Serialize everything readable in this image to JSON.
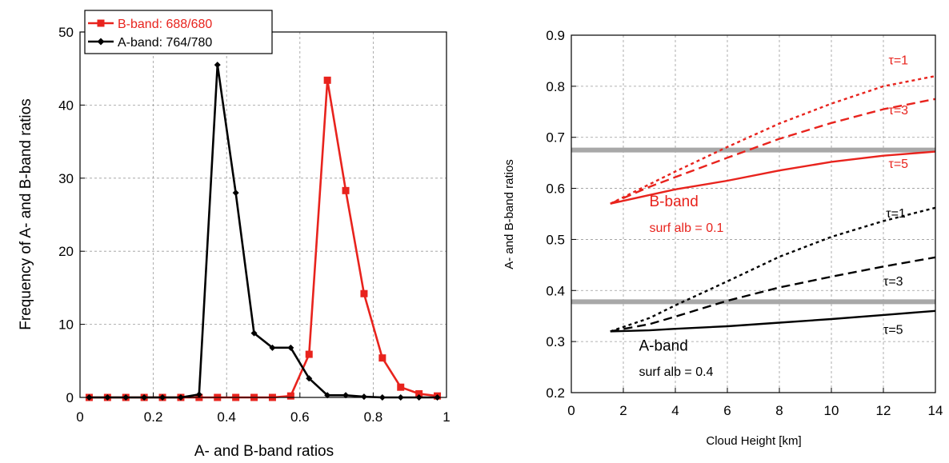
{
  "chart_data": [
    {
      "type": "line",
      "xlabel": "A- and B-band ratios",
      "ylabel": "Frequency of A- and B-band ratios",
      "xlim": [
        0,
        1
      ],
      "ylim": [
        0,
        50
      ],
      "x_ticks": [
        "0",
        "0.2",
        "0.4",
        "0.6",
        "0.8",
        "1"
      ],
      "y_ticks": [
        "0",
        "10",
        "20",
        "30",
        "40",
        "50"
      ],
      "grid": true,
      "legend_position": "top-left",
      "series": [
        {
          "name": "B-band: 688/680",
          "color": "#e8231d",
          "marker": "square",
          "points": [
            [
              0.025,
              0
            ],
            [
              0.075,
              0
            ],
            [
              0.125,
              0
            ],
            [
              0.175,
              0
            ],
            [
              0.225,
              0
            ],
            [
              0.275,
              0
            ],
            [
              0.325,
              0
            ],
            [
              0.375,
              0
            ],
            [
              0.425,
              0
            ],
            [
              0.475,
              0
            ],
            [
              0.525,
              0
            ],
            [
              0.575,
              0.2
            ],
            [
              0.625,
              5.9
            ],
            [
              0.675,
              43.4
            ],
            [
              0.725,
              28.3
            ],
            [
              0.775,
              14.2
            ],
            [
              0.825,
              5.4
            ],
            [
              0.875,
              1.4
            ],
            [
              0.925,
              0.5
            ],
            [
              0.975,
              0.2
            ]
          ]
        },
        {
          "name": "A-band: 764/780",
          "color": "#000000",
          "marker": "diamond",
          "points": [
            [
              0.025,
              0
            ],
            [
              0.075,
              0
            ],
            [
              0.125,
              0
            ],
            [
              0.175,
              0
            ],
            [
              0.225,
              0
            ],
            [
              0.275,
              0
            ],
            [
              0.325,
              0.4
            ],
            [
              0.375,
              45.5
            ],
            [
              0.425,
              28.0
            ],
            [
              0.475,
              8.8
            ],
            [
              0.525,
              6.8
            ],
            [
              0.575,
              6.8
            ],
            [
              0.625,
              2.6
            ],
            [
              0.675,
              0.3
            ],
            [
              0.725,
              0.3
            ],
            [
              0.775,
              0.1
            ],
            [
              0.825,
              0
            ],
            [
              0.875,
              0
            ],
            [
              0.925,
              0
            ],
            [
              0.975,
              0
            ]
          ]
        }
      ]
    },
    {
      "type": "line",
      "xlabel": "Cloud Height [km]",
      "ylabel": "A- and B-band ratios",
      "xlim": [
        0,
        14
      ],
      "ylim": [
        0.2,
        0.9
      ],
      "x_ticks": [
        "0",
        "2",
        "4",
        "6",
        "8",
        "10",
        "12",
        "14"
      ],
      "y_ticks": [
        "0.2",
        "0.3",
        "0.4",
        "0.5",
        "0.6",
        "0.7",
        "0.8",
        "0.9"
      ],
      "grid": true,
      "reference_lines": [
        {
          "y": 0.675,
          "color": "#a8a8a8"
        },
        {
          "y": 0.378,
          "color": "#a8a8a8"
        }
      ],
      "series": [
        {
          "color": "#e8231d",
          "dash": "dotted",
          "points": [
            [
              1.5,
              0.57
            ],
            [
              3,
              0.608
            ],
            [
              4,
              0.633
            ],
            [
              6,
              0.681
            ],
            [
              8,
              0.727
            ],
            [
              10,
              0.766
            ],
            [
              12,
              0.8
            ],
            [
              14,
              0.82
            ]
          ]
        },
        {
          "color": "#e8231d",
          "dash": "dashed",
          "points": [
            [
              1.5,
              0.57
            ],
            [
              3,
              0.603
            ],
            [
              4,
              0.622
            ],
            [
              6,
              0.66
            ],
            [
              8,
              0.697
            ],
            [
              10,
              0.728
            ],
            [
              12,
              0.755
            ],
            [
              14,
              0.775
            ]
          ]
        },
        {
          "color": "#e8231d",
          "dash": "solid",
          "points": [
            [
              1.5,
              0.57
            ],
            [
              3,
              0.587
            ],
            [
              4,
              0.598
            ],
            [
              6,
              0.615
            ],
            [
              8,
              0.635
            ],
            [
              10,
              0.652
            ],
            [
              12,
              0.664
            ],
            [
              14,
              0.672
            ]
          ]
        },
        {
          "color": "#000000",
          "dash": "dotted",
          "points": [
            [
              1.5,
              0.32
            ],
            [
              3,
              0.346
            ],
            [
              4,
              0.371
            ],
            [
              6,
              0.418
            ],
            [
              8,
              0.466
            ],
            [
              10,
              0.505
            ],
            [
              12,
              0.536
            ],
            [
              14,
              0.562
            ]
          ]
        },
        {
          "color": "#000000",
          "dash": "dashed",
          "points": [
            [
              1.5,
              0.32
            ],
            [
              3,
              0.334
            ],
            [
              4,
              0.349
            ],
            [
              6,
              0.38
            ],
            [
              8,
              0.406
            ],
            [
              10,
              0.427
            ],
            [
              12,
              0.447
            ],
            [
              14,
              0.465
            ]
          ]
        },
        {
          "color": "#000000",
          "dash": "solid",
          "points": [
            [
              1.5,
              0.32
            ],
            [
              3,
              0.322
            ],
            [
              4,
              0.325
            ],
            [
              6,
              0.33
            ],
            [
              8,
              0.337
            ],
            [
              10,
              0.344
            ],
            [
              12,
              0.352
            ],
            [
              14,
              0.36
            ]
          ]
        }
      ],
      "annotations": [
        {
          "text": "τ=1",
          "x": 12.2,
          "y": 0.843,
          "color": "#e8231d",
          "size": 16
        },
        {
          "text": "τ=3",
          "x": 12.2,
          "y": 0.745,
          "color": "#e8231d",
          "size": 16
        },
        {
          "text": "τ=5",
          "x": 12.2,
          "y": 0.64,
          "color": "#e8231d",
          "size": 16
        },
        {
          "text": "B-band",
          "x": 3.0,
          "y": 0.565,
          "color": "#e8231d",
          "size": 19
        },
        {
          "text": "surf alb = 0.1",
          "x": 3.0,
          "y": 0.515,
          "color": "#e8231d",
          "size": 16
        },
        {
          "text": "τ=1",
          "x": 12.1,
          "y": 0.543,
          "color": "#000000",
          "size": 16
        },
        {
          "text": "τ=3",
          "x": 12.0,
          "y": 0.41,
          "color": "#000000",
          "size": 16
        },
        {
          "text": "τ=5",
          "x": 12.0,
          "y": 0.315,
          "color": "#000000",
          "size": 16
        },
        {
          "text": "A-band",
          "x": 2.6,
          "y": 0.282,
          "color": "#000000",
          "size": 19
        },
        {
          "text": "surf alb = 0.4",
          "x": 2.6,
          "y": 0.233,
          "color": "#000000",
          "size": 16
        }
      ]
    }
  ]
}
